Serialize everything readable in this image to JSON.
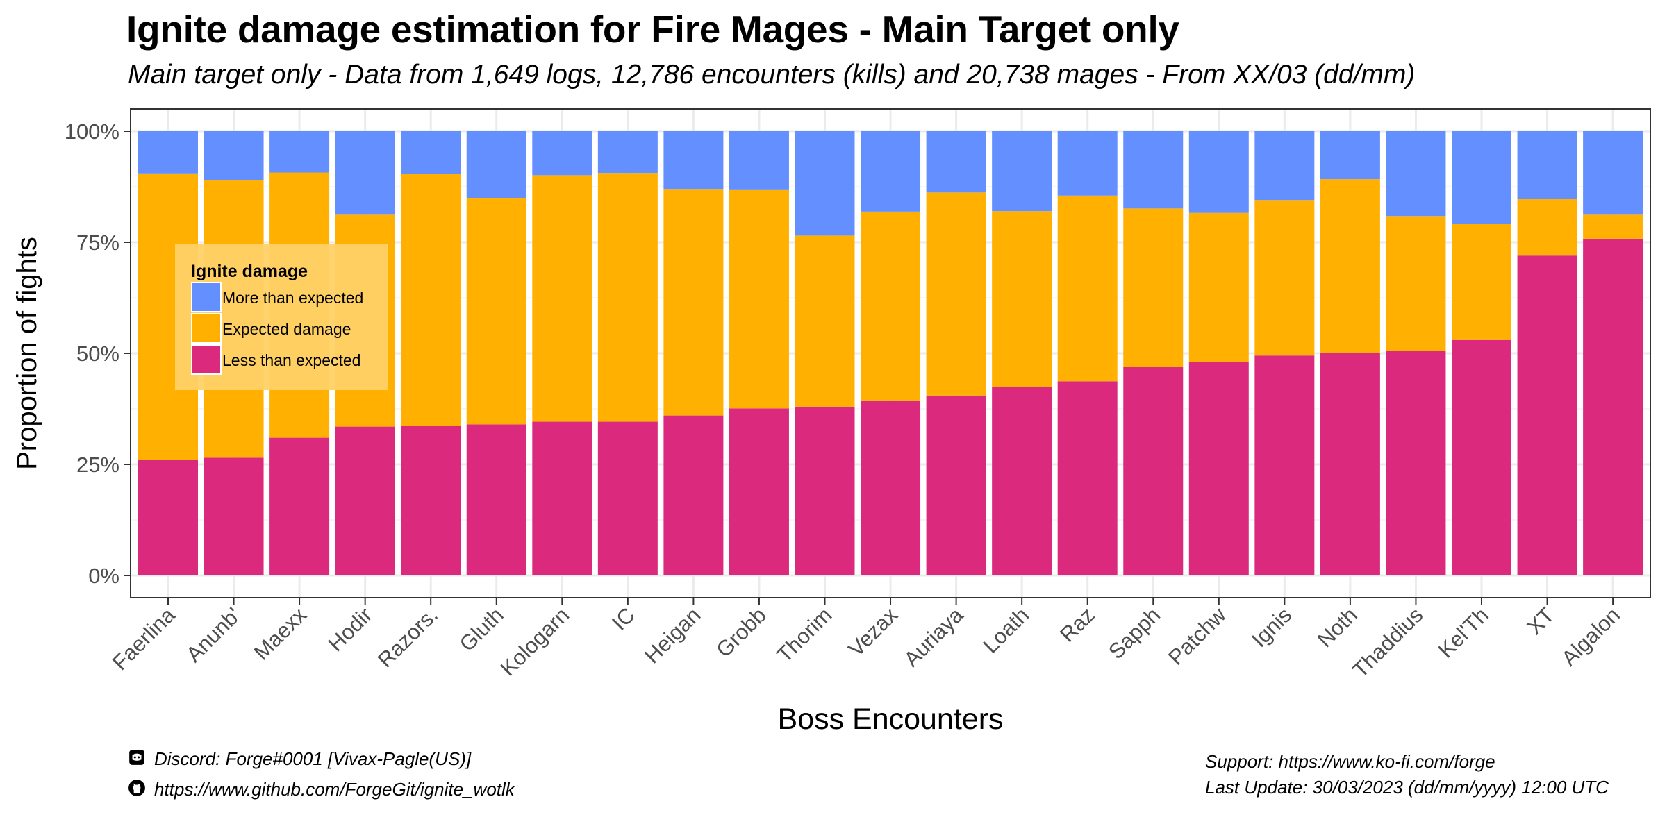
{
  "chart_data": {
    "type": "bar",
    "stacked": true,
    "title": "Ignite damage estimation for Fire Mages - Main Target only",
    "subtitle": "Main target only - Data from 1,649 logs, 12,786 encounters (kills) and 20,738 mages - From XX/03 (dd/mm)",
    "xlabel": "Boss Encounters",
    "ylabel": "Proportion of fights",
    "ylim": [
      0,
      1
    ],
    "yticks": [
      "0%",
      "25%",
      "50%",
      "75%",
      "100%"
    ],
    "grid": true,
    "categories": [
      "Faerlina",
      "Anunb'",
      "Maexx",
      "Hodir",
      "Razors.",
      "Gluth",
      "Kologarn",
      "IC",
      "Heigan",
      "Grobb",
      "Thorim",
      "Vezax",
      "Auriaya",
      "Loath",
      "Raz",
      "Sapph",
      "Patchw",
      "Ignis",
      "Noth",
      "Thaddius",
      "Kel'Th",
      "XT",
      "Algalon"
    ],
    "series": [
      {
        "name": "Less than expected",
        "color": "#DB2A7E",
        "values": [
          0.26,
          0.265,
          0.31,
          0.335,
          0.337,
          0.34,
          0.346,
          0.346,
          0.36,
          0.376,
          0.38,
          0.394,
          0.405,
          0.425,
          0.437,
          0.47,
          0.48,
          0.495,
          0.5,
          0.506,
          0.53,
          0.72,
          0.758
        ]
      },
      {
        "name": "Expected damage",
        "color": "#FFB000",
        "values": [
          0.645,
          0.624,
          0.597,
          0.477,
          0.567,
          0.51,
          0.555,
          0.56,
          0.51,
          0.493,
          0.385,
          0.425,
          0.457,
          0.395,
          0.418,
          0.356,
          0.336,
          0.35,
          0.392,
          0.303,
          0.262,
          0.128,
          0.054
        ]
      },
      {
        "name": "More than expected",
        "color": "#648FFF",
        "values": [
          0.095,
          0.111,
          0.093,
          0.188,
          0.096,
          0.15,
          0.099,
          0.094,
          0.13,
          0.131,
          0.235,
          0.181,
          0.138,
          0.18,
          0.145,
          0.174,
          0.184,
          0.155,
          0.108,
          0.191,
          0.208,
          0.152,
          0.188
        ]
      }
    ],
    "legend": {
      "title": "Ignite damage",
      "placement": "top-left inside plot",
      "entries": [
        "More than expected",
        "Expected damage",
        "Less than expected"
      ]
    }
  },
  "footer": {
    "discord": "Discord: Forge#0001 [Vivax-Pagle(US)]",
    "github": "https://www.github.com/ForgeGit/ignite_wotlk",
    "support": "Support: https://www.ko-fi.com/forge",
    "last_update": "Last Update: 30/03/2023 (dd/mm/yyyy)  12:00 UTC"
  },
  "icons": {
    "discord": "discord-icon",
    "github": "github-icon"
  }
}
